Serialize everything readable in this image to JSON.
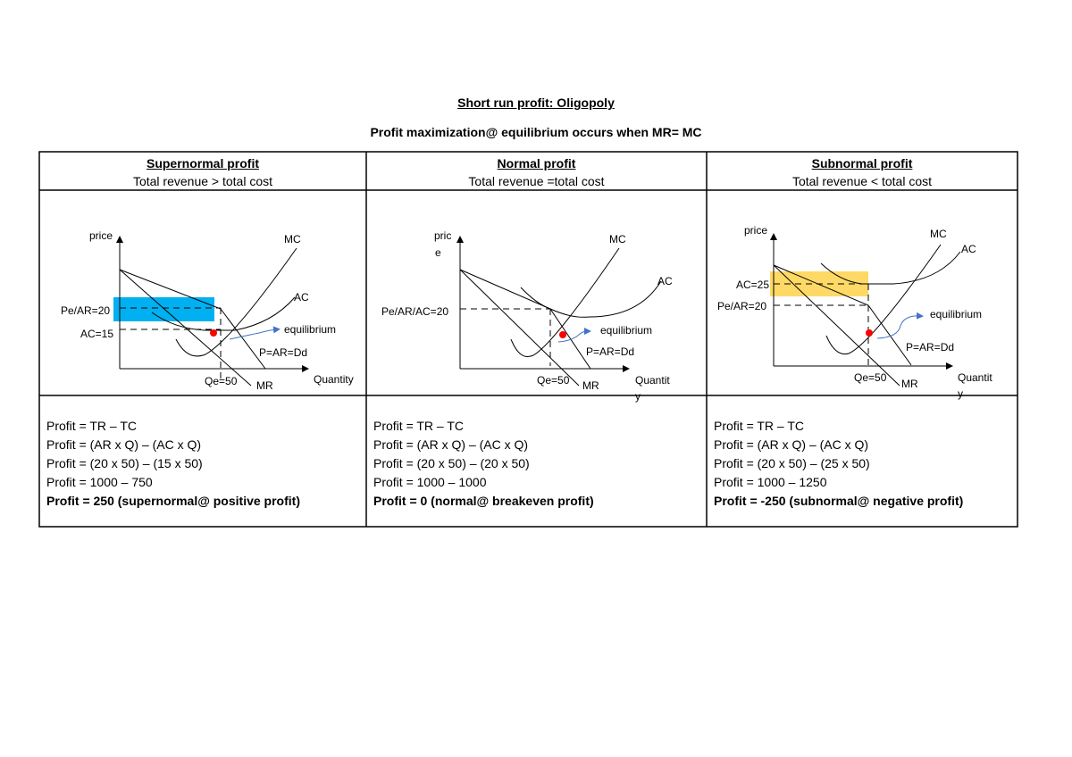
{
  "title": "Short run profit: Oligopoly",
  "subtitle": "Profit maximization@ equilibrium occurs when MR= MC",
  "colors": {
    "supernormal_area": "#00b0f0",
    "subnormal_area": "#ffd966",
    "equilibrium_dot": "#ff0000",
    "arrow": "#4472c4"
  },
  "columns": [
    {
      "heading": "Supernormal profit",
      "subheading": "Total revenue > total cost",
      "diagram": {
        "y_axis": "price",
        "x_axis": "Quantity",
        "mc": "MC",
        "ac": "AC",
        "price_label": "Pe/AR=20",
        "cost_label": "AC=15",
        "equilibrium": "equilibrium",
        "demand": "P=AR=Dd",
        "quantity_label": "Qe=50",
        "mr": "MR"
      },
      "calc": [
        "Profit = TR – TC",
        "Profit = (AR x Q) – (AC x Q)",
        "Profit = (20 x 50) – (15 x 50)",
        "Profit = 1000 – 750",
        "Profit = 250 (supernormal@ positive profit)"
      ]
    },
    {
      "heading": "Normal profit",
      "subheading": "Total revenue =total cost",
      "diagram": {
        "y_axis_1": "pric",
        "y_axis_2": "e",
        "x_axis_1": "Quantit",
        "x_axis_2": "y",
        "mc": "MC",
        "ac": "AC",
        "price_label": "Pe/AR/AC=20",
        "equilibrium": "equilibrium",
        "demand": "P=AR=Dd",
        "quantity_label": "Qe=50",
        "mr": "MR"
      },
      "calc": [
        "Profit = TR – TC",
        "Profit = (AR x Q) – (AC x Q)",
        "Profit = (20 x 50) – (20 x 50)",
        "Profit = 1000 – 1000",
        "Profit = 0 (normal@ breakeven profit)"
      ]
    },
    {
      "heading": "Subnormal profit",
      "subheading": "Total revenue < total cost",
      "diagram": {
        "y_axis": "price",
        "x_axis_1": "Quantit",
        "x_axis_2": "y",
        "mc": "MC",
        "ac": "AC",
        "cost_label": "AC=25",
        "price_label": "Pe/AR=20",
        "equilibrium": "equilibrium",
        "demand": "P=AR=Dd",
        "quantity_label": "Qe=50",
        "mr": "MR"
      },
      "calc": [
        "Profit = TR – TC",
        "Profit = (AR x Q) – (AC x Q)",
        "Profit = (20 x 50) – (25 x 50)",
        "Profit = 1000 – 1250",
        "Profit = -250 (subnormal@ negative profit)"
      ]
    }
  ]
}
